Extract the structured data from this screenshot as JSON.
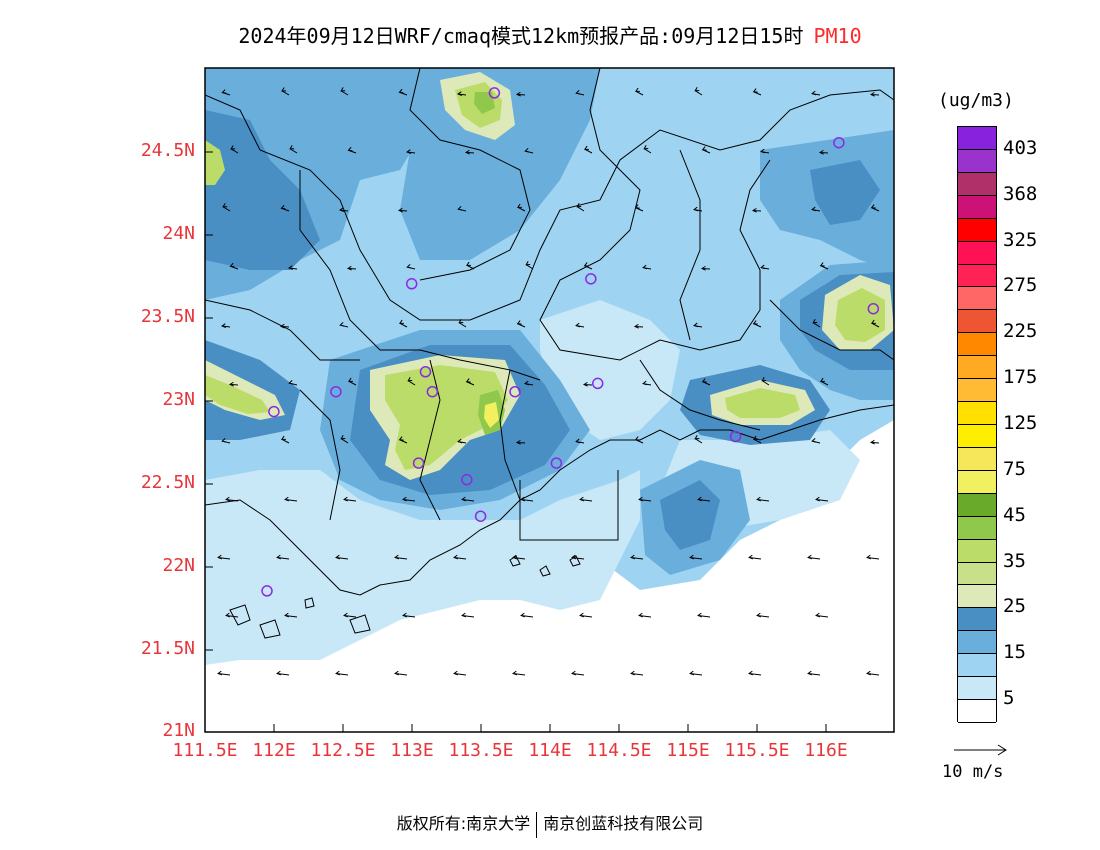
{
  "title": {
    "main": "2024年09月12日WRF/cmaq模式12km预报产品:09月12日15时",
    "variable": "PM10"
  },
  "map": {
    "lat_ticks": [
      "21N",
      "21.5N",
      "22N",
      "22.5N",
      "23N",
      "23.5N",
      "24N",
      "24.5N"
    ],
    "lon_ticks": [
      "111.5E",
      "112E",
      "112.5E",
      "113E",
      "113.5E",
      "114E",
      "114.5E",
      "115E",
      "115.5E",
      "116E"
    ],
    "extent": {
      "lon_min": 111.5,
      "lon_max": 116.5,
      "lat_min": 21.0,
      "lat_max": 25.0
    },
    "colors": {
      "land_boundary": "#000000",
      "station_marker": "#8a2be2",
      "axis_label": "#e8353a"
    },
    "stations": [
      {
        "lon": 113.6,
        "lat": 24.85
      },
      {
        "lon": 116.1,
        "lat": 24.55
      },
      {
        "lon": 113.0,
        "lat": 23.7
      },
      {
        "lon": 114.3,
        "lat": 23.73
      },
      {
        "lon": 116.35,
        "lat": 23.55
      },
      {
        "lon": 112.45,
        "lat": 23.05
      },
      {
        "lon": 112.0,
        "lat": 22.93
      },
      {
        "lon": 113.1,
        "lat": 23.17
      },
      {
        "lon": 113.15,
        "lat": 23.05
      },
      {
        "lon": 113.75,
        "lat": 23.05
      },
      {
        "lon": 114.35,
        "lat": 23.1
      },
      {
        "lon": 115.35,
        "lat": 22.78
      },
      {
        "lon": 113.05,
        "lat": 22.62
      },
      {
        "lon": 113.4,
        "lat": 22.52
      },
      {
        "lon": 114.05,
        "lat": 22.62
      },
      {
        "lon": 113.5,
        "lat": 22.3
      },
      {
        "lon": 111.95,
        "lat": 21.85
      }
    ]
  },
  "colorbar": {
    "unit": "(ug/m3)",
    "colors": [
      "#8822dd",
      "#9933cc",
      "#b0306a",
      "#cc1177",
      "#ff0000",
      "#ff1155",
      "#ff2255",
      "#ff6666",
      "#ee5533",
      "#ff8800",
      "#ffaa22",
      "#ffbb33",
      "#ffe000",
      "#ffee00",
      "#f5e65a",
      "#f0f060",
      "#6aaa2a",
      "#8fc84a",
      "#bcdc6a",
      "#c8e08a",
      "#dde9b8",
      "#4a8fc4",
      "#6aaedc",
      "#9ed4f2",
      "#c8e8f8",
      "#ffffff"
    ],
    "labels": [
      "403",
      "368",
      "325",
      "275",
      "225",
      "175",
      "125",
      "75",
      "45",
      "35",
      "25",
      "15",
      "5"
    ]
  },
  "reference_vector": {
    "label": "10 m/s"
  },
  "copyright": {
    "left": "版权所有:南京大学",
    "right": "南京创蓝科技有限公司"
  }
}
